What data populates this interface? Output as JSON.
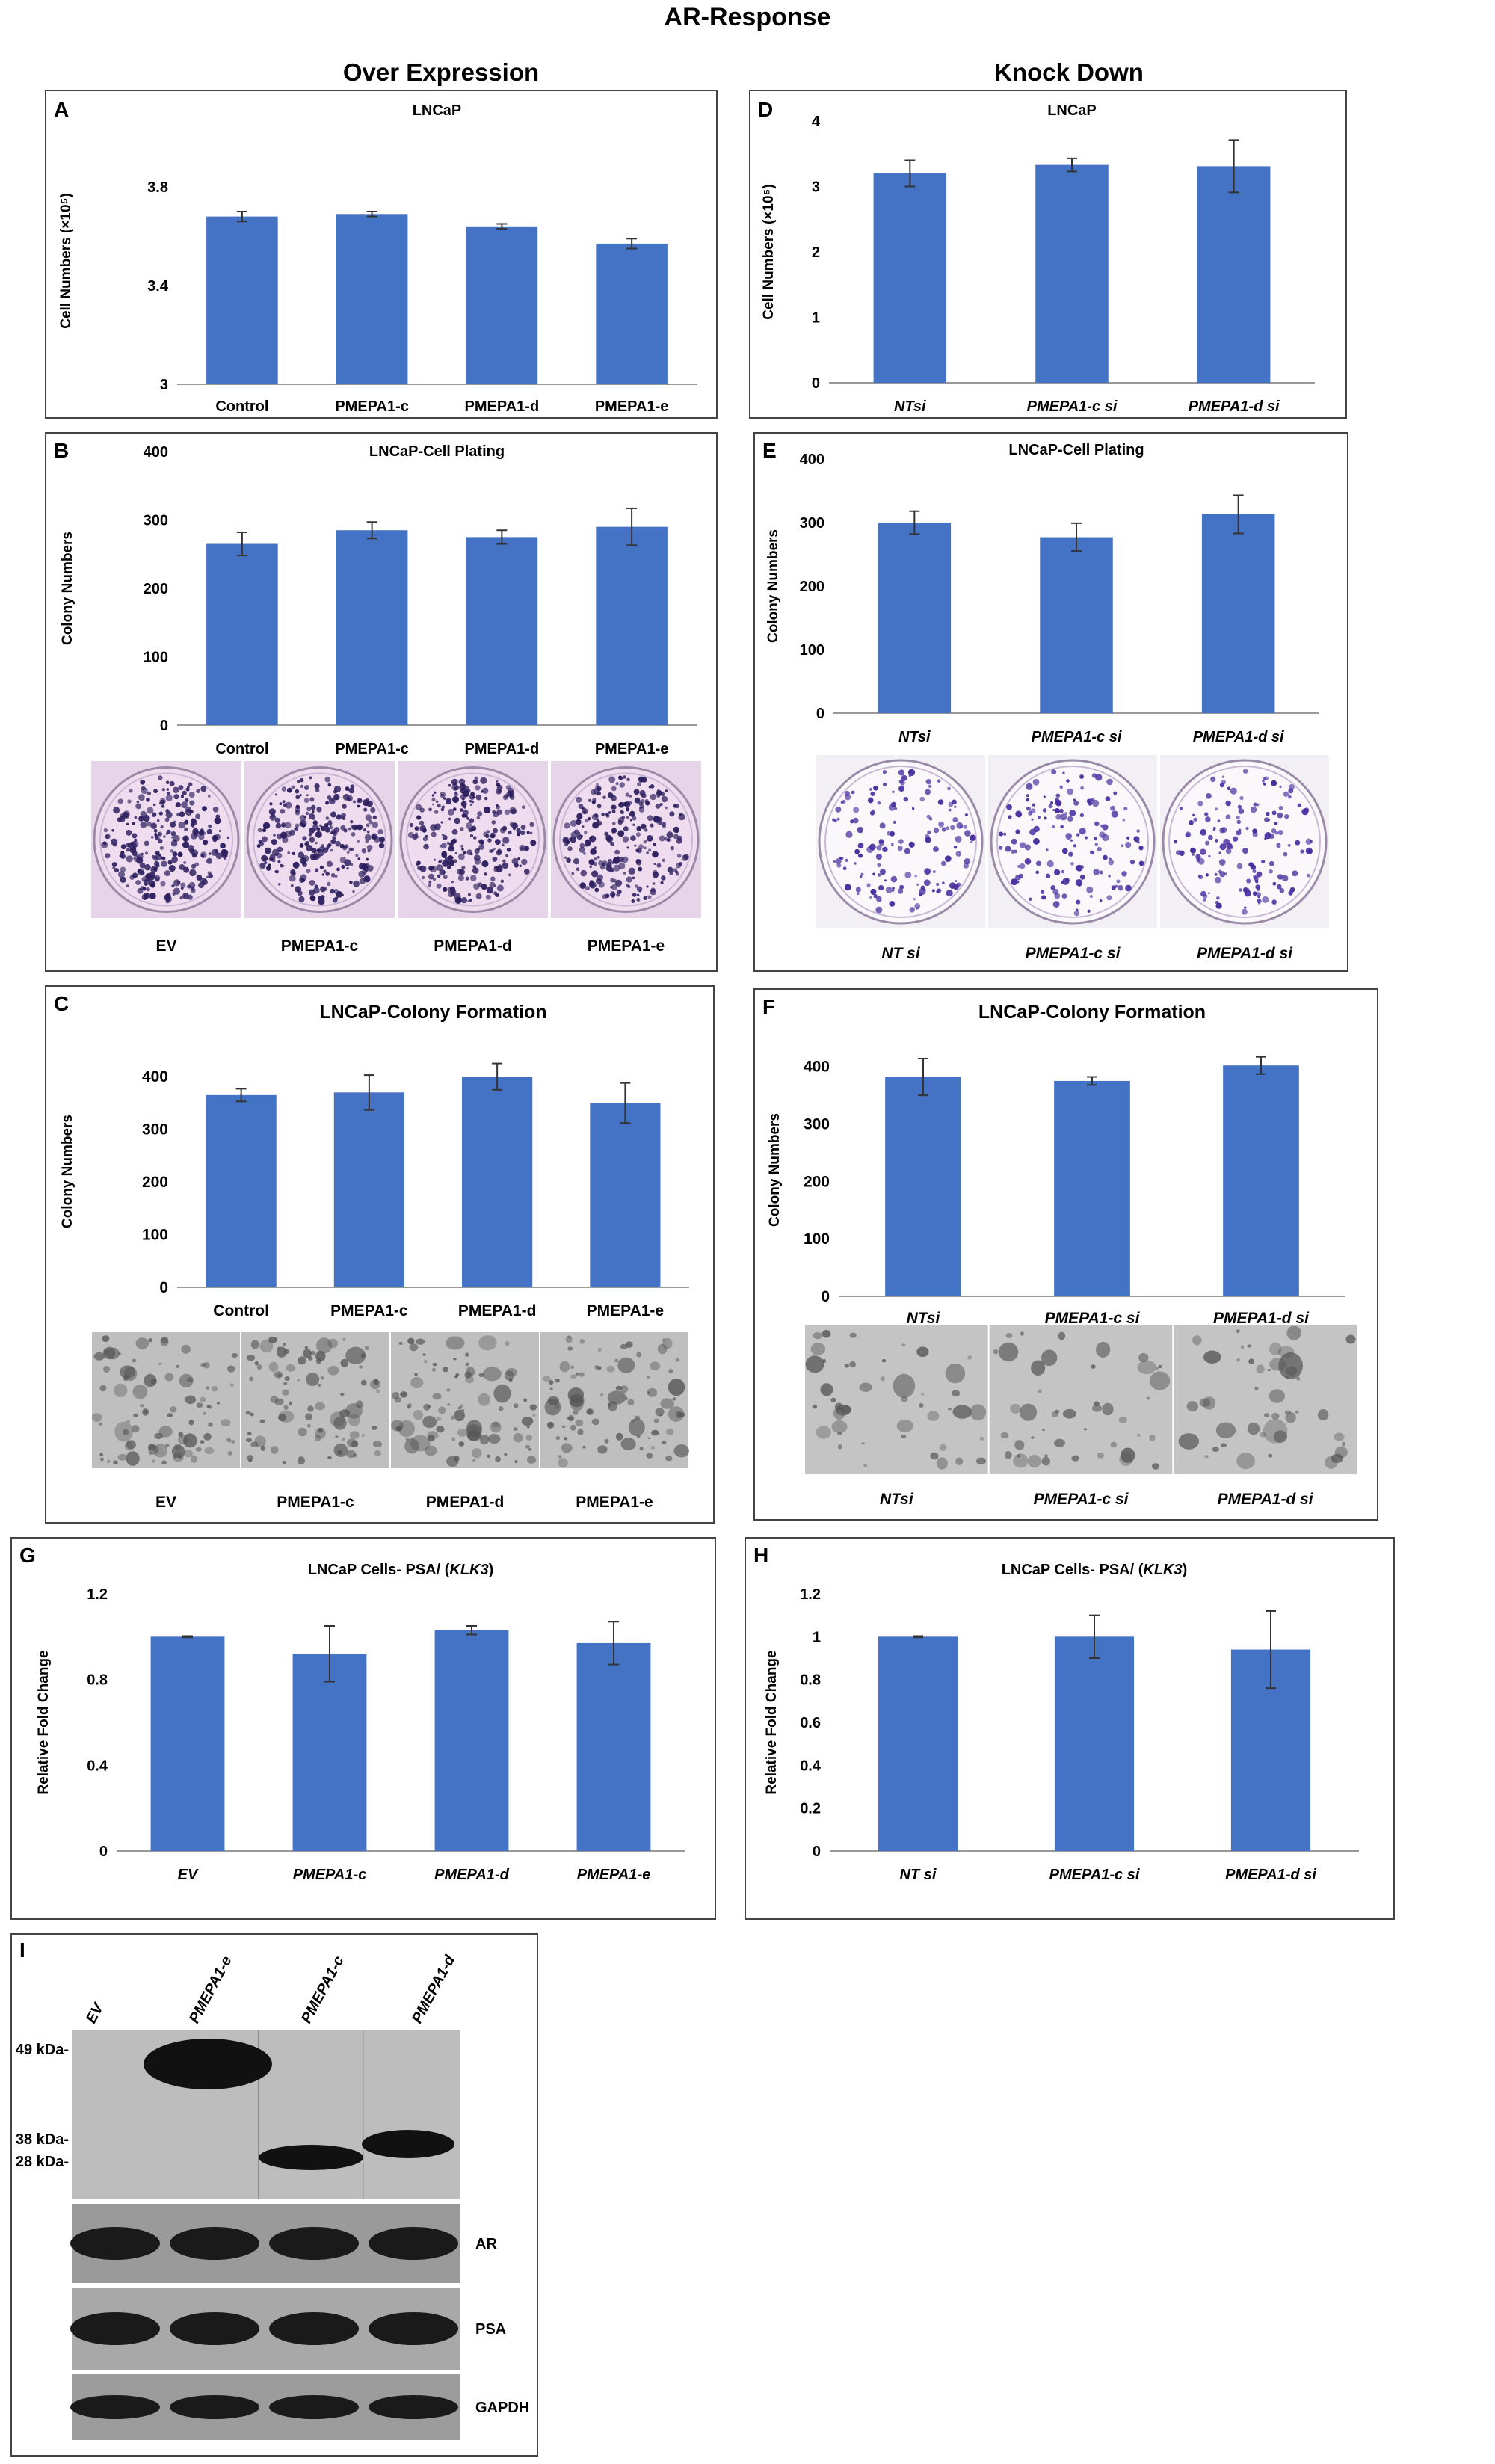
{
  "header": {
    "title": "AR-Response",
    "col_left": "Over Expression",
    "col_right": "Knock Down"
  },
  "colors": {
    "bar": "#4472C4",
    "err": "#333333"
  },
  "chart_data": [
    {
      "id": "A",
      "type": "bar",
      "letter": "A",
      "title": "LNCaP",
      "ylabel": "Cell Numbers (×10⁵)",
      "categories": [
        "Control",
        "PMEPA1-c",
        "PMEPA1-d",
        "PMEPA1-e"
      ],
      "values": [
        3.68,
        3.69,
        3.64,
        3.57
      ],
      "errors": [
        0.02,
        0.01,
        0.01,
        0.02
      ],
      "ylim": [
        3,
        4
      ],
      "yticks": [
        "3",
        "3.4",
        "3.8"
      ],
      "ytick_values": [
        3,
        3.4,
        3.8
      ],
      "italic_x": false
    },
    {
      "id": "D",
      "type": "bar",
      "letter": "D",
      "title": "LNCaP",
      "ylabel": "Cell Numbers (×10⁵)",
      "categories": [
        "NTsi",
        "PMEPA1-c si",
        "PMEPA1-d si"
      ],
      "values": [
        3.2,
        3.33,
        3.31
      ],
      "errors": [
        0.2,
        0.1,
        0.4
      ],
      "ylim": [
        0,
        4
      ],
      "yticks": [
        "0",
        "1",
        "2",
        "3",
        "4"
      ],
      "ytick_values": [
        0,
        1,
        2,
        3,
        4
      ],
      "italic_x": true
    },
    {
      "id": "B",
      "type": "bar",
      "letter": "B",
      "title": "LNCaP-Cell Plating",
      "ylabel": "Colony Numbers",
      "categories": [
        "Control",
        "PMEPA1-c",
        "PMEPA1-d",
        "PMEPA1-e"
      ],
      "values": [
        265,
        285,
        275,
        290
      ],
      "errors": [
        17,
        12,
        10,
        27
      ],
      "ylim": [
        0,
        400
      ],
      "yticks": [
        "0",
        "100",
        "200",
        "300",
        "400"
      ],
      "ytick_values": [
        0,
        100,
        200,
        300,
        400
      ],
      "italic_x": false,
      "photo_labels": [
        "EV",
        "PMEPA1-c",
        "PMEPA1-d",
        "PMEPA1-e"
      ]
    },
    {
      "id": "E",
      "type": "bar",
      "letter": "E",
      "title": "LNCaP-Cell Plating",
      "ylabel": "Colony Numbers",
      "categories": [
        "NTsi",
        "PMEPA1-c si",
        "PMEPA1-d si"
      ],
      "values": [
        300,
        277,
        313
      ],
      "errors": [
        18,
        22,
        30
      ],
      "ylim": [
        0,
        400
      ],
      "yticks": [
        "0",
        "100",
        "200",
        "300",
        "400"
      ],
      "ytick_values": [
        0,
        100,
        200,
        300,
        400
      ],
      "italic_x": true,
      "photo_labels": [
        "NT si",
        "PMEPA1-c si",
        "PMEPA1-d si"
      ]
    },
    {
      "id": "C",
      "type": "bar",
      "letter": "C",
      "title": "LNCaP-Colony Formation",
      "ylabel": "Colony Numbers",
      "categories": [
        "Control",
        "PMEPA1-c",
        "PMEPA1-d",
        "PMEPA1-e"
      ],
      "values": [
        365,
        370,
        400,
        350
      ],
      "errors": [
        12,
        33,
        25,
        38
      ],
      "ylim": [
        0,
        440
      ],
      "yticks": [
        "0",
        "100",
        "200",
        "300",
        "400"
      ],
      "ytick_values": [
        0,
        100,
        200,
        300,
        400
      ],
      "italic_x": false,
      "photo_labels": [
        "EV",
        "PMEPA1-c",
        "PMEPA1-d",
        "PMEPA1-e"
      ]
    },
    {
      "id": "F",
      "type": "bar",
      "letter": "F",
      "title": "LNCaP-Colony Formation",
      "ylabel": "Colony Numbers",
      "categories": [
        "NTsi",
        "PMEPA1-c si",
        "PMEPA1-d si"
      ],
      "values": [
        382,
        375,
        402
      ],
      "errors": [
        32,
        7,
        15
      ],
      "ylim": [
        0,
        440
      ],
      "yticks": [
        "0",
        "100",
        "200",
        "300",
        "400"
      ],
      "ytick_values": [
        0,
        100,
        200,
        300,
        400
      ],
      "italic_x": true,
      "photo_labels": [
        "NTsi",
        "PMEPA1-c si",
        "PMEPA1-d si"
      ]
    },
    {
      "id": "G",
      "type": "bar",
      "letter": "G",
      "title": "LNCaP Cells- PSA/ (",
      "title_italic": "KLK3",
      "title_end": ")",
      "ylabel": "Relative Fold Change",
      "categories": [
        "EV",
        "PMEPA1-c",
        "PMEPA1-d",
        "PMEPA1-e"
      ],
      "values": [
        1.0,
        0.92,
        1.03,
        0.97
      ],
      "errors": [
        0.003,
        0.13,
        0.02,
        0.1
      ],
      "ylim": [
        0,
        1.2
      ],
      "yticks": [
        "0",
        "0.4",
        "0.8",
        "1.2"
      ],
      "ytick_values": [
        0,
        0.4,
        0.8,
        1.2
      ],
      "italic_x": true
    },
    {
      "id": "H",
      "type": "bar",
      "letter": "H",
      "title": "LNCaP Cells- PSA/ (",
      "title_italic": "KLK3",
      "title_end": ")",
      "ylabel": "Relative Fold Change",
      "categories": [
        "NT si",
        "PMEPA1-c si",
        "PMEPA1-d si"
      ],
      "values": [
        1.0,
        1.0,
        0.94
      ],
      "errors": [
        0.003,
        0.1,
        0.18
      ],
      "ylim": [
        0,
        1.2
      ],
      "yticks": [
        "0",
        "0.2",
        "0.4",
        "0.6",
        "0.8",
        "1",
        "1.2"
      ],
      "ytick_values": [
        0,
        0.2,
        0.4,
        0.6,
        0.8,
        1,
        1.2
      ],
      "italic_x": true
    }
  ],
  "western": {
    "letter": "I",
    "lanes": [
      "EV",
      "PMEPA1-e",
      "PMEPA1-c",
      "PMEPA1-d"
    ],
    "markers": [
      "49 kDa-",
      "38 kDa-",
      "28 kDa-"
    ],
    "bands": [
      "AR",
      "PSA",
      "GAPDH"
    ]
  }
}
